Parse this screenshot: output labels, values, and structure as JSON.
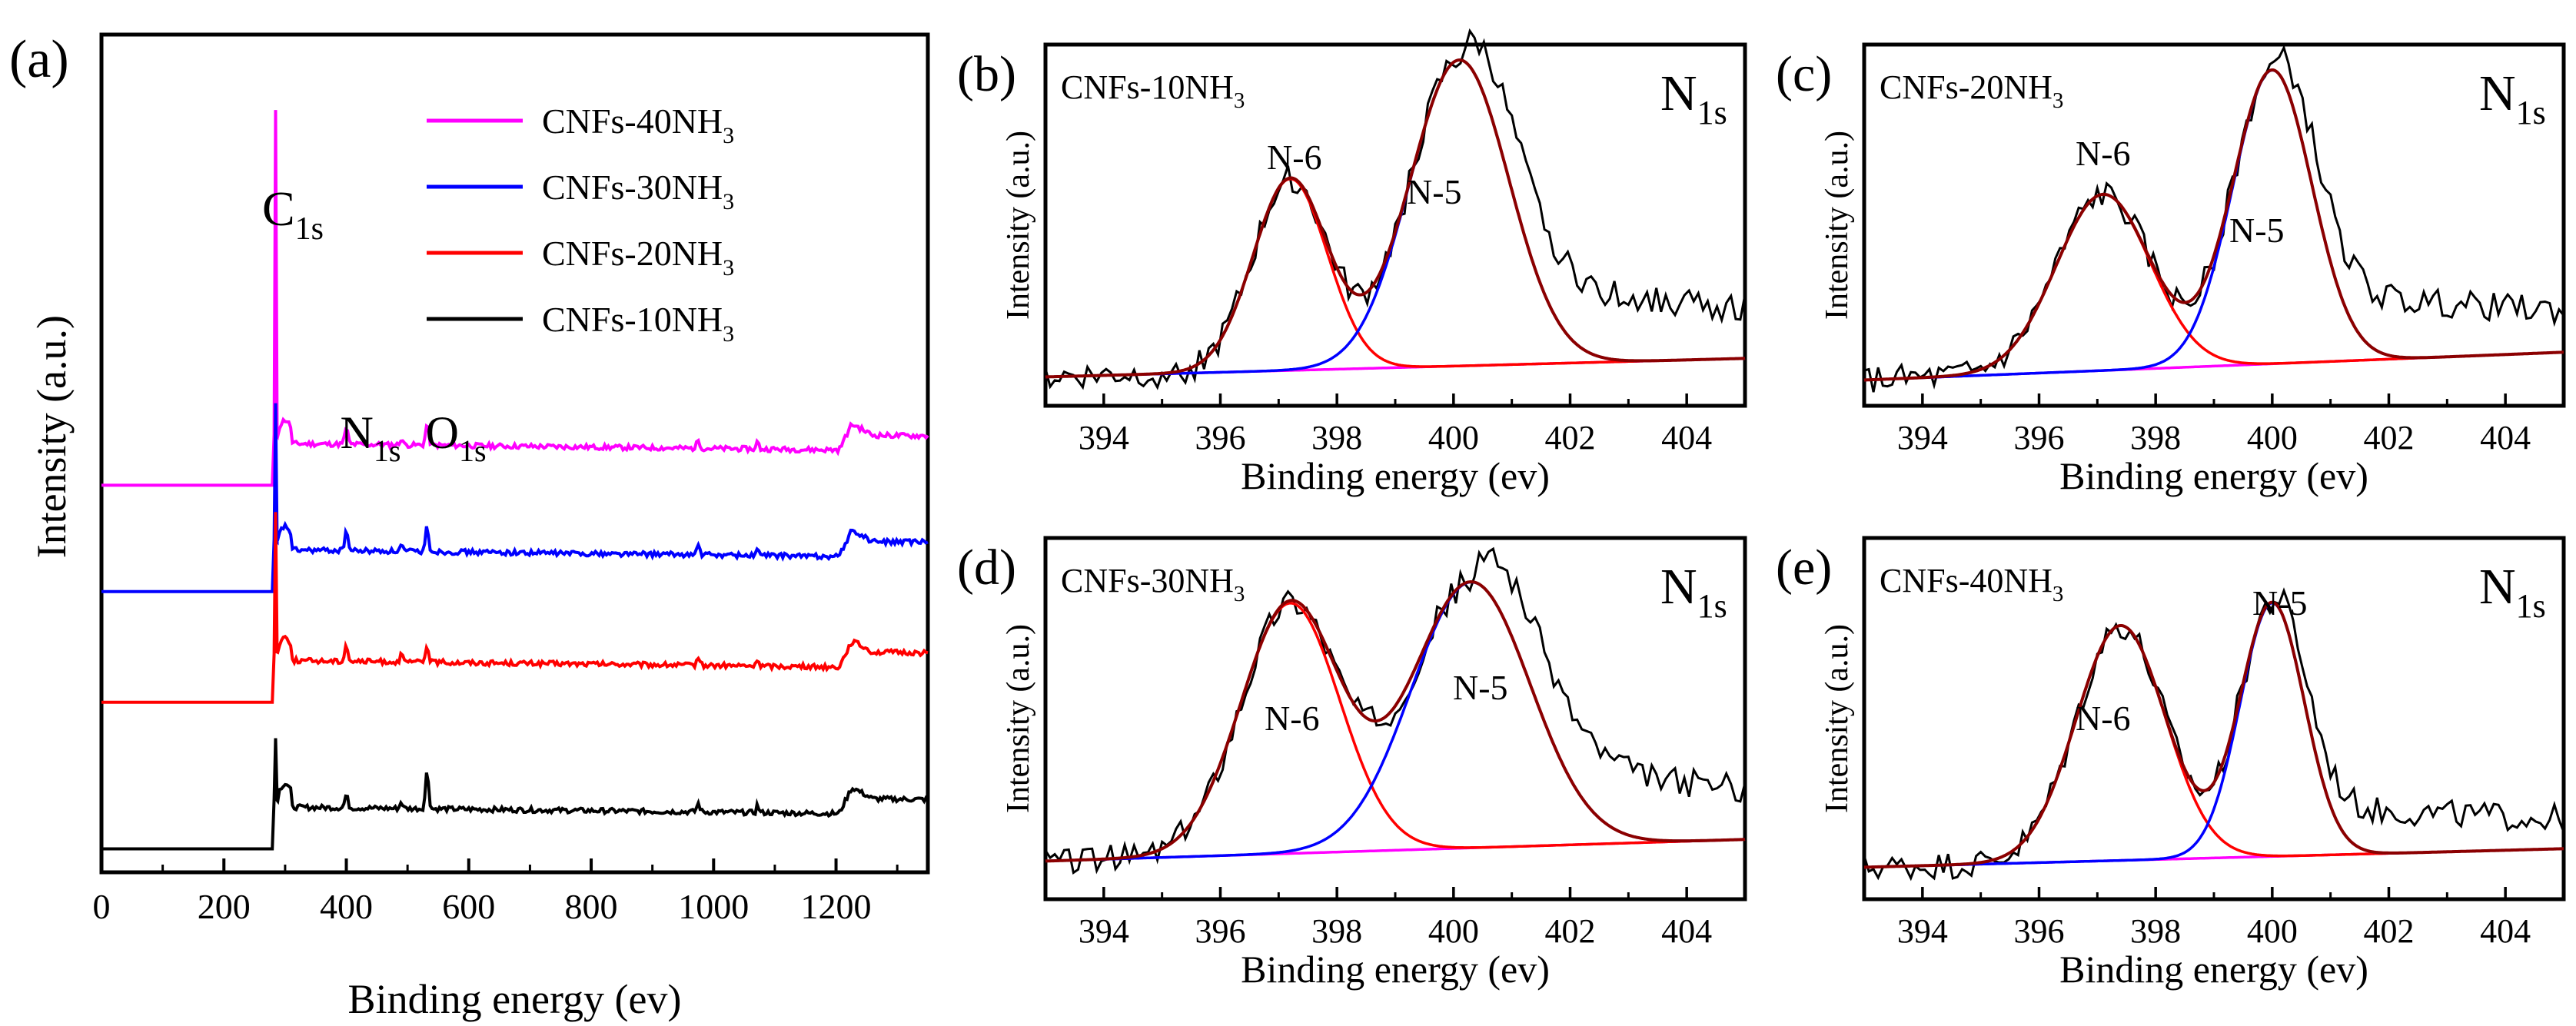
{
  "chart_data": [
    {
      "id": "a",
      "type": "line",
      "panel_label": "(a)",
      "xlabel": "Binding energy (ev)",
      "ylabel": "Intensity (a.u.)",
      "xlim": [
        0,
        1350
      ],
      "ylim": [
        0,
        1
      ],
      "xticks": [
        0,
        200,
        400,
        600,
        800,
        1000,
        1200
      ],
      "xtick_labels": [
        "0",
        "200",
        "400",
        "600",
        "800",
        "1000",
        "1200"
      ],
      "legend": {
        "position": "top-right",
        "entries": [
          {
            "name": "CNFs-40NH",
            "sub": "3",
            "color": "#ff00ff"
          },
          {
            "name": "CNFs-30NH",
            "sub": "3",
            "color": "#0000ff"
          },
          {
            "name": "CNFs-20NH",
            "sub": "3",
            "color": "#ff0000"
          },
          {
            "name": "CNFs-10NH",
            "sub": "3",
            "color": "#000000"
          }
        ]
      },
      "annotations": [
        {
          "base": "C",
          "sub": "1s",
          "x": 285
        },
        {
          "base": "N",
          "sub": "1s",
          "x": 400
        },
        {
          "base": "O",
          "sub": "1s",
          "x": 532
        }
      ],
      "series": [
        {
          "name": "CNFs-40NH3",
          "color": "#ff00ff",
          "baseline": 0.462,
          "c1s_peak": 0.91,
          "n1s": 0.02,
          "o1s": 0.025,
          "auger": 0.03
        },
        {
          "name": "CNFs-30NH3",
          "color": "#0000ff",
          "baseline": 0.335,
          "c1s_peak": 0.56,
          "n1s": 0.025,
          "o1s": 0.03,
          "auger": 0.03
        },
        {
          "name": "CNFs-20NH3",
          "color": "#ff0000",
          "baseline": 0.203,
          "c1s_peak": 0.43,
          "n1s": 0.02,
          "o1s": 0.02,
          "auger": 0.03
        },
        {
          "name": "CNFs-10NH3",
          "color": "#000000",
          "baseline": 0.028,
          "c1s_peak": 0.16,
          "n1s": 0.015,
          "o1s": 0.045,
          "auger": 0.03
        }
      ]
    },
    {
      "id": "b",
      "type": "line",
      "panel_label": "(b)",
      "sample": {
        "base": "CNFs-10NH",
        "sub": "3"
      },
      "region": {
        "base": "N",
        "sub": "1s"
      },
      "xlabel": "Binding energy (ev)",
      "ylabel": "Intensity (a.u.)",
      "xlim": [
        393,
        405
      ],
      "ylim": [
        0,
        1
      ],
      "xticks": [
        394,
        396,
        398,
        400,
        402,
        404
      ],
      "xtick_labels": [
        "394",
        "396",
        "398",
        "400",
        "402",
        "404"
      ],
      "peaks": [
        {
          "label": "N-6",
          "center": 397.2,
          "amplitude": 0.62,
          "fwhm": 1.5
        },
        {
          "label": "N-5",
          "center": 400.1,
          "amplitude": 0.99,
          "fwhm": 2.0
        }
      ],
      "background": [
        0.07,
        0.13
      ],
      "tail_level": 0.3
    },
    {
      "id": "c",
      "type": "line",
      "panel_label": "(c)",
      "sample": {
        "base": "CNFs-20NH",
        "sub": "3"
      },
      "region": {
        "base": "N",
        "sub": "1s"
      },
      "xlabel": "Binding energy (ev)",
      "ylabel": "Intensity (a.u.)",
      "xlim": [
        393,
        405
      ],
      "ylim": [
        0,
        1
      ],
      "xticks": [
        394,
        396,
        398,
        400,
        402,
        404
      ],
      "xtick_labels": [
        "394",
        "396",
        "398",
        "400",
        "402",
        "404"
      ],
      "peaks": [
        {
          "label": "N-6",
          "center": 397.1,
          "amplitude": 0.57,
          "fwhm": 1.9
        },
        {
          "label": "N-5",
          "center": 400.0,
          "amplitude": 0.95,
          "fwhm": 1.6
        }
      ],
      "background": [
        0.06,
        0.15
      ],
      "tail_level": 0.25
    },
    {
      "id": "d",
      "type": "line",
      "panel_label": "(d)",
      "sample": {
        "base": "CNFs-30NH",
        "sub": "3"
      },
      "region": {
        "base": "N",
        "sub": "1s"
      },
      "xlabel": "Binding energy (ev)",
      "ylabel": "Intensity (a.u.)",
      "xlim": [
        393,
        405
      ],
      "ylim": [
        0,
        1
      ],
      "xticks": [
        394,
        396,
        398,
        400,
        402,
        404
      ],
      "xtick_labels": [
        "394",
        "396",
        "398",
        "400",
        "402",
        "404"
      ],
      "peaks": [
        {
          "label": "N-6",
          "center": 397.2,
          "amplitude": 0.81,
          "fwhm": 2.0
        },
        {
          "label": "N-5",
          "center": 400.3,
          "amplitude": 0.86,
          "fwhm": 2.4
        }
      ],
      "background": [
        0.1,
        0.17
      ],
      "tail_level": 0.3
    },
    {
      "id": "e",
      "type": "line",
      "panel_label": "(e)",
      "sample": {
        "base": "CNFs-40NH",
        "sub": "3"
      },
      "region": {
        "base": "N",
        "sub": "1s"
      },
      "xlabel": "Binding energy (ev)",
      "ylabel": "Intensity (a.u.)",
      "xlim": [
        393,
        405
      ],
      "ylim": [
        0,
        1
      ],
      "xticks": [
        394,
        396,
        398,
        400,
        402,
        404
      ],
      "xtick_labels": [
        "394",
        "396",
        "398",
        "400",
        "402",
        "404"
      ],
      "peaks": [
        {
          "label": "N-6",
          "center": 397.4,
          "amplitude": 0.76,
          "fwhm": 1.8
        },
        {
          "label": "N-5",
          "center": 400.0,
          "amplitude": 0.82,
          "fwhm": 1.3
        }
      ],
      "background": [
        0.08,
        0.14
      ],
      "tail_level": 0.18
    }
  ],
  "colors": {
    "raw": "#000000",
    "envelope": "#8b0000",
    "n6_component": "#ff0000",
    "n5_component": "#0000ff",
    "background": "#ff00ff"
  }
}
